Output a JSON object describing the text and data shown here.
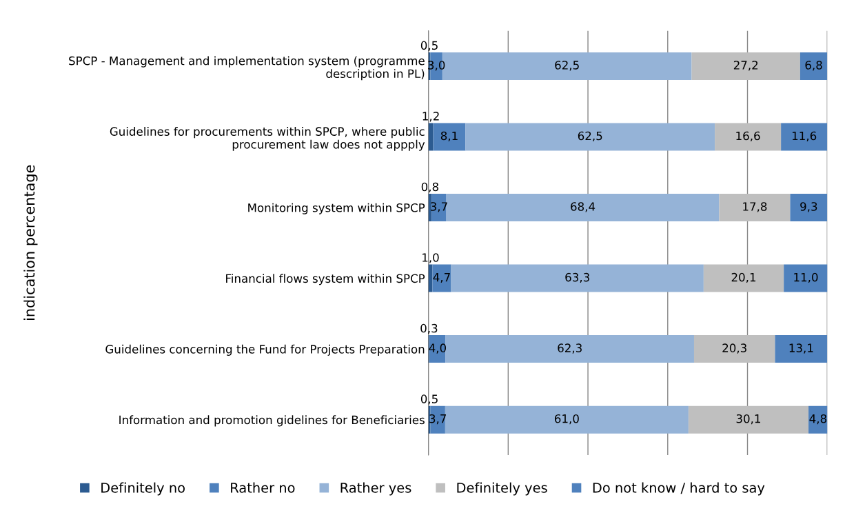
{
  "chart_data": {
    "type": "bar",
    "orientation": "horizontal",
    "stacked": true,
    "ylabel": "indication percentage",
    "categories": [
      "SPCP - Management and implementation system (programme\ndescription in PL)",
      "Guidelines for procurements within SPCP, where public\nprocurement law does not appply",
      "Monitoring system within SPCP",
      "Financial flows system within SPCP",
      "Guidelines concerning the Fund for Projects Preparation",
      "Information and promotion gidelines for Beneficiaries"
    ],
    "series": [
      {
        "name": "Definitely no",
        "color": "#2c5b91",
        "values": [
          0.5,
          1.2,
          0.8,
          1.0,
          0.3,
          0.5
        ],
        "value_labels": [
          "0,5",
          "1,2",
          "0,8",
          "1,0",
          "0,3",
          "0,5"
        ]
      },
      {
        "name": "Rather no",
        "color": "#4f81bd",
        "values": [
          3.0,
          8.1,
          3.7,
          4.7,
          4.0,
          3.7
        ],
        "value_labels": [
          "3,0",
          "8,1",
          "3,7",
          "4,7",
          "4,0",
          "3,7"
        ]
      },
      {
        "name": "Rather yes",
        "color": "#95b3d7",
        "values": [
          62.5,
          62.5,
          68.4,
          63.3,
          62.3,
          61.0
        ],
        "value_labels": [
          "62,5",
          "62,5",
          "68,4",
          "63,3",
          "62,3",
          "61,0"
        ]
      },
      {
        "name": "Definitely yes",
        "color": "#bfbfbf",
        "values": [
          27.2,
          16.6,
          17.8,
          20.1,
          20.3,
          30.1
        ],
        "value_labels": [
          "27,2",
          "16,6",
          "17,8",
          "20,1",
          "20,3",
          "30,1"
        ]
      },
      {
        "name": "Do not know / hard to say",
        "color": "#4f81bd",
        "values": [
          6.8,
          11.6,
          9.3,
          11.0,
          13.1,
          4.8
        ],
        "value_labels": [
          "6,8",
          "11,6",
          "9,3",
          "11,0",
          "13,1",
          "4,8"
        ]
      }
    ],
    "xlim": [
      0,
      100
    ],
    "xticks": [
      {
        "value": 0,
        "label": null
      },
      {
        "value": 20,
        "label": null
      },
      {
        "value": 40,
        "label": null
      },
      {
        "value": 60,
        "label": null
      },
      {
        "value": 80,
        "label": null
      },
      {
        "value": 100,
        "label": null
      }
    ],
    "tick_labels": "y",
    "grid": "x",
    "legend": "bottom"
  }
}
